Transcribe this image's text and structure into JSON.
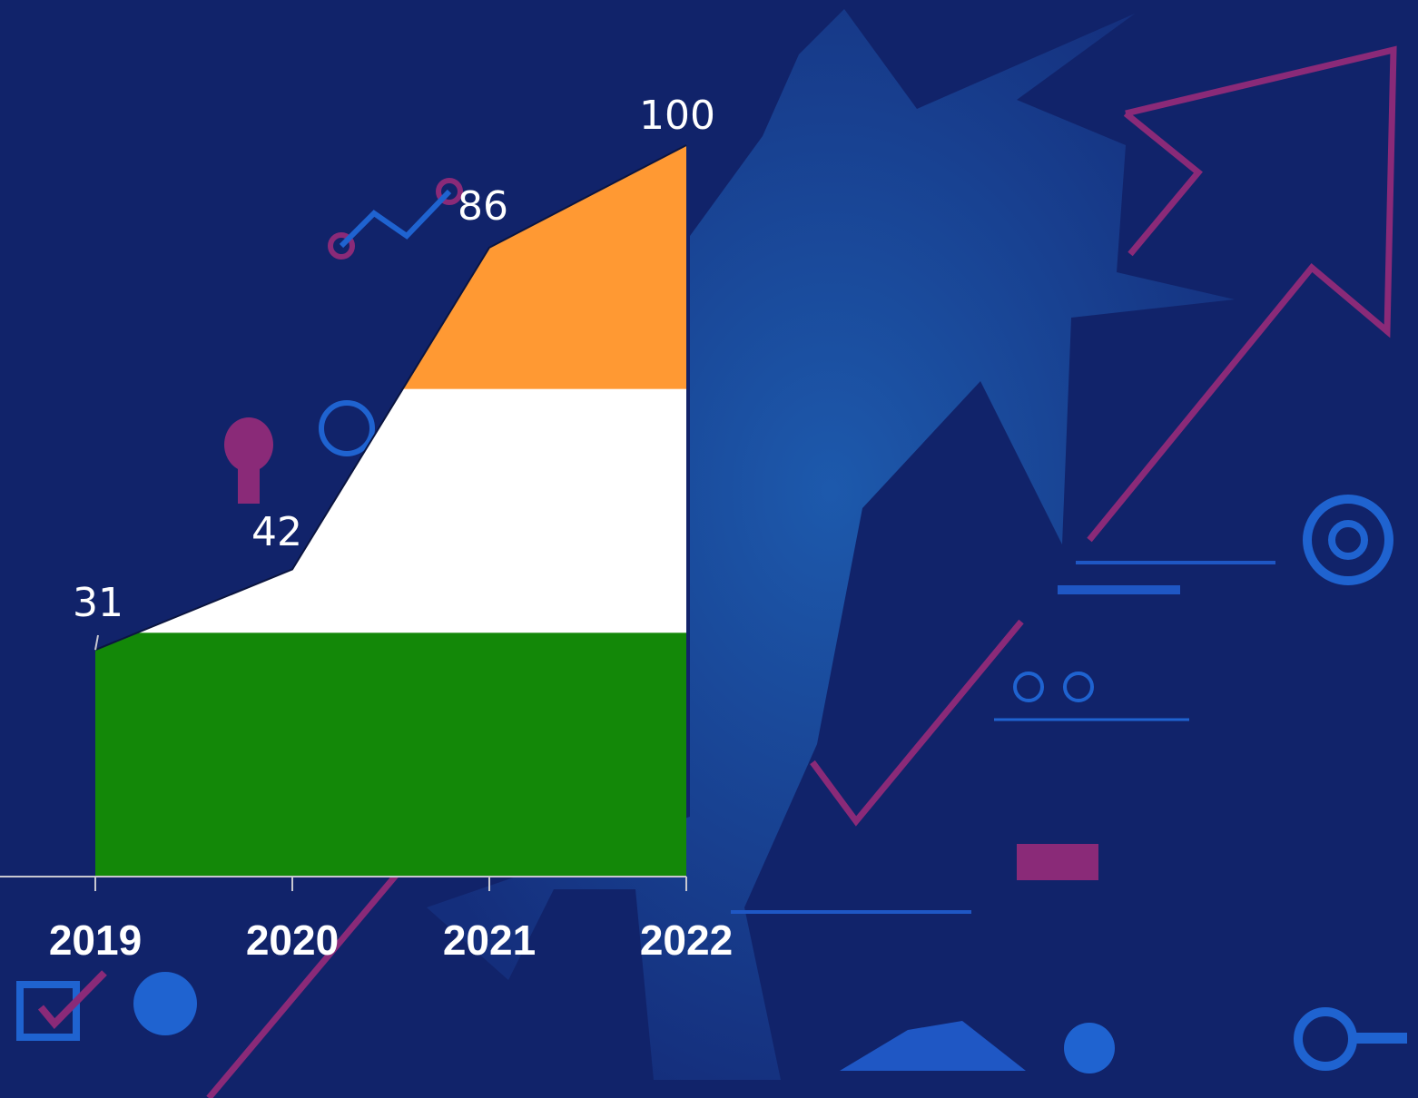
{
  "chart_data": {
    "type": "area",
    "categories": [
      "2019",
      "2020",
      "2021",
      "2022"
    ],
    "values": [
      31,
      42,
      86,
      100
    ],
    "ylim": [
      0,
      100
    ],
    "colors": [
      "#ff9933",
      "#ffffff",
      "#138808"
    ]
  }
}
